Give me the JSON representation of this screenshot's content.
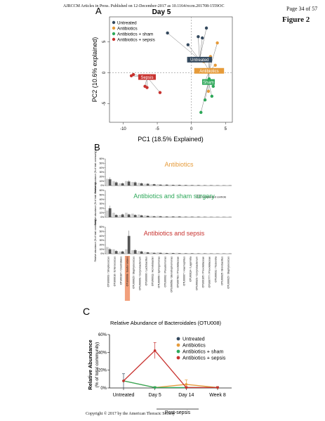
{
  "header": {
    "journal_line": "AJRCCM Articles in Press. Published on 12-December-2017 as 10.1164/rccm.201708-1559OC",
    "page_label": "Page 34 of 57"
  },
  "figure_title": "Figure 2",
  "footer": "Copyright © 2017 by the American Thoracic Society",
  "colors": {
    "untreated": "#34495e",
    "antibiotics": "#e69b3a",
    "sham": "#2ea85a",
    "sepsis": "#c8322f",
    "bar_dark": "#555555",
    "bar_light": "#d0d0d0"
  },
  "panel_a": {
    "letter": "A",
    "title": "Day 5",
    "xlabel": "PC1 (18.5% Explained)",
    "ylabel": "PC2 (10.6% explained)",
    "legend": [
      "Untreated",
      "Antibiotics",
      "Antibiotics + sham",
      "Antibiotics + sepsis"
    ],
    "centroid_labels": [
      "Untreated",
      "Antibiotics",
      "Sham",
      "Sepsis"
    ],
    "xticks": [
      "-10",
      "-5",
      "0",
      "5"
    ],
    "yticks": [
      "5",
      "0",
      "-5"
    ]
  },
  "panel_b": {
    "letter": "B",
    "panel_titles": [
      "Antibiotics",
      "Antibiotics and sham surgery",
      "Antibiotics and sepsis"
    ],
    "legend_label": "Unoperated controls",
    "ylabel": "Relative abundance (% of total community)",
    "yticks": [
      "60%",
      "50%",
      "40%",
      "30%",
      "20%",
      "10%",
      "0%"
    ],
    "taxa": [
      "OTU00003 / Streptococcus",
      "OTU00010 / Enterococcus",
      "OTU00187 / Clostridiales",
      "OTU00008 / Bacteroidales",
      "OTU00015 / Staphylococcus",
      "OTU00009 / Corynebacterium",
      "OTU00006 / Lactobacillus",
      "OTU00011 / Acinetobacter",
      "OTU00059 / Sphingomonas",
      "OTU00002 / Pseudomonas",
      "OTU00058 / Stenotrophomonas",
      "OTU00783 / Prevotellaceae",
      "OTU00007 / Haemophilus",
      "OTU00114 / Lagenidia",
      "OTU00029 / Corynebacterium",
      "OTU00105 / Prevotellaceae",
      "OTU00777 / Prevotellaceae",
      "OTU00031 / Tissierella",
      "OTU00025 / Brevibacillus",
      "OTU00015 / Staphylococcus"
    ],
    "highlight_index": 3
  },
  "panel_c": {
    "letter": "C",
    "title": "Relative Abundance of Bacteroidales (OTU008)",
    "ylabel": "Relative Abundance",
    "ylabel_sub": "(% of total community)",
    "xlabel_group": "Post-sepsis",
    "legend": [
      "Untreated",
      "Antibiotics",
      "Antibiotics + sham",
      "Antibiotics + sepsis"
    ]
  },
  "chart_data": [
    {
      "type": "scatter",
      "title": "Day 5",
      "xlabel": "PC1 (18.5% Explained)",
      "ylabel": "PC2 (10.6% explained)",
      "xlim": [
        -12,
        6
      ],
      "ylim": [
        -8,
        9
      ],
      "grid": false,
      "legend_position": "top-left",
      "series": [
        {
          "name": "Untreated",
          "centroid": [
            1.2,
            2.1
          ],
          "points": [
            [
              -3.5,
              6.4
            ],
            [
              1.0,
              5.8
            ],
            [
              2.2,
              7.2
            ],
            [
              1.6,
              5.6
            ],
            [
              -0.5,
              4.5
            ]
          ]
        },
        {
          "name": "Antibiotics",
          "centroid": [
            2.6,
            0.3
          ],
          "points": [
            [
              3.8,
              4.8
            ],
            [
              1.8,
              1.8
            ],
            [
              2.0,
              -1.5
            ],
            [
              3.5,
              1.2
            ],
            [
              2.5,
              -3.0
            ],
            [
              2.8,
              2.6
            ]
          ]
        },
        {
          "name": "Antibiotics + sham",
          "centroid": [
            2.5,
            -1.5
          ],
          "points": [
            [
              3.2,
              -2.2
            ],
            [
              2.0,
              -4.4
            ],
            [
              1.4,
              -6.4
            ],
            [
              3.0,
              -3.8
            ],
            [
              2.6,
              -1.0
            ],
            [
              2.6,
              2.2
            ]
          ]
        },
        {
          "name": "Antibiotics + sepsis",
          "centroid": [
            -6.5,
            -0.7
          ],
          "points": [
            [
              -8.5,
              -0.3
            ],
            [
              -6.8,
              -2.2
            ],
            [
              -8.8,
              -0.5
            ],
            [
              -4.6,
              -3.2
            ],
            [
              -6.5,
              -2.4
            ]
          ]
        }
      ]
    },
    {
      "type": "bar",
      "title": "Antibiotics",
      "categories": [
        "OTU00003",
        "OTU00010",
        "OTU00187",
        "OTU00008",
        "OTU00015",
        "OTU00009",
        "OTU00006",
        "OTU00011",
        "OTU00059",
        "OTU00002",
        "OTU00058",
        "OTU00783",
        "OTU00007",
        "OTU00114",
        "OTU00029",
        "OTU00105",
        "OTU00777",
        "OTU00031",
        "OTU00025",
        "OTU00015"
      ],
      "ylim": [
        0,
        60
      ],
      "series": [
        {
          "name": "Unoperated controls",
          "values": [
            15,
            10,
            5,
            10,
            8,
            6,
            4,
            3,
            3,
            2,
            2,
            2,
            1.5,
            1.5,
            1.2,
            1,
            1,
            1,
            0.8,
            0.5
          ]
        },
        {
          "values": [
            14,
            7,
            5,
            9,
            7,
            5,
            4,
            3,
            2,
            2,
            1.5,
            1.5,
            1.2,
            1,
            1,
            0.8,
            0.8,
            0.6,
            0.5,
            0.4
          ]
        }
      ]
    },
    {
      "type": "bar",
      "title": "Antibiotics and sham surgery",
      "categories": [
        "OTU00003",
        "OTU00010",
        "OTU00187",
        "OTU00008",
        "OTU00015",
        "OTU00009",
        "OTU00006",
        "OTU00011",
        "OTU00059",
        "OTU00002",
        "OTU00058",
        "OTU00783",
        "OTU00007",
        "OTU00114",
        "OTU00029",
        "OTU00105",
        "OTU00777",
        "OTU00031",
        "OTU00025",
        "OTU00015"
      ],
      "ylim": [
        0,
        60
      ],
      "series": [
        {
          "name": "Unoperated controls",
          "values": [
            15,
            10,
            5,
            10,
            8,
            6,
            4,
            3,
            3,
            2,
            2,
            2,
            1.5,
            1.5,
            1.2,
            1,
            1,
            1,
            0.8,
            0.5
          ]
        },
        {
          "values": [
            20,
            5,
            6,
            6,
            5,
            4,
            3,
            2,
            2,
            1.5,
            1.5,
            1.5,
            1,
            1,
            1,
            0.8,
            0.6,
            0.5,
            0.5,
            0.4
          ]
        }
      ]
    },
    {
      "type": "bar",
      "title": "Antibiotics and sepsis",
      "categories": [
        "OTU00003",
        "OTU00010",
        "OTU00187",
        "OTU00008",
        "OTU00015",
        "OTU00009",
        "OTU00006",
        "OTU00011",
        "OTU00059",
        "OTU00002",
        "OTU00058",
        "OTU00783",
        "OTU00007",
        "OTU00114",
        "OTU00029",
        "OTU00105",
        "OTU00777",
        "OTU00031",
        "OTU00025",
        "OTU00015"
      ],
      "ylim": [
        0,
        60
      ],
      "series": [
        {
          "name": "Unoperated controls",
          "values": [
            15,
            10,
            5,
            10,
            8,
            6,
            4,
            3,
            3,
            2,
            2,
            2,
            1.5,
            1.5,
            1.2,
            1,
            1,
            1,
            0.8,
            0.5
          ]
        },
        {
          "values": [
            10,
            6,
            5,
            40,
            8,
            5,
            3,
            2,
            2,
            1.5,
            1.5,
            1.2,
            1,
            1,
            0.8,
            0.8,
            0.6,
            0.5,
            0.5,
            0.4
          ]
        }
      ]
    },
    {
      "type": "line",
      "title": "Relative Abundance of Bacteroidales (OTU008)",
      "xlabel": "Post-sepsis",
      "ylabel": "Relative Abundance (% of total community)",
      "categories": [
        "Untreated",
        "Day 5",
        "Day 14",
        "Week 8"
      ],
      "ylim": [
        0,
        60
      ],
      "yticks": [
        "0%",
        "20%",
        "40%",
        "60%"
      ],
      "legend_position": "top-right",
      "series": [
        {
          "name": "Untreated",
          "values": [
            8,
            null,
            null,
            null
          ],
          "error": [
            8,
            null,
            null,
            null
          ]
        },
        {
          "name": "Antibiotics",
          "values": [
            8,
            0.5,
            4,
            0.5
          ],
          "error": [
            0,
            1,
            5,
            1
          ]
        },
        {
          "name": "Antibiotics + sham",
          "values": [
            8,
            0.5,
            0.5,
            0.5
          ],
          "error": [
            0,
            1,
            1,
            1
          ]
        },
        {
          "name": "Antibiotics + sepsis",
          "values": [
            8,
            42,
            0.5,
            0.5
          ],
          "error": [
            0,
            9,
            1,
            1
          ]
        }
      ]
    }
  ]
}
